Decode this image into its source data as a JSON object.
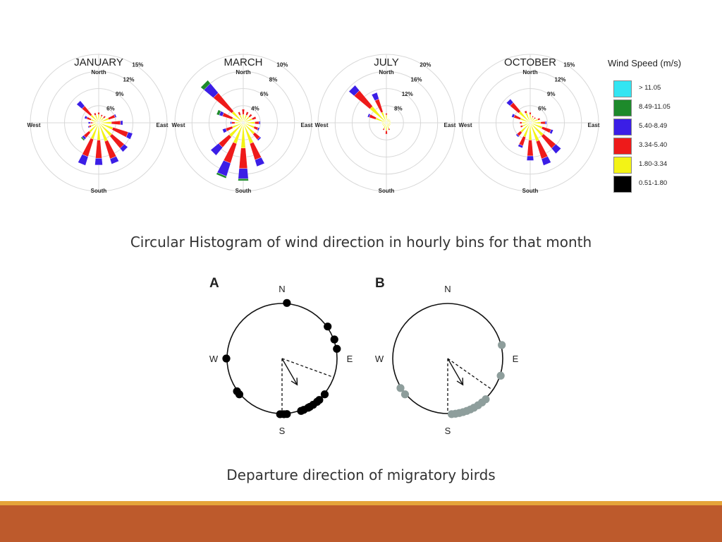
{
  "wind_roses": [
    {
      "title": "JANUARY",
      "north": "North",
      "south": "South",
      "east": "East",
      "west": "West",
      "rings": [
        "6%",
        "9%",
        "12%",
        "15%"
      ]
    },
    {
      "title": "MARCH",
      "north": "North",
      "south": "South",
      "east": "East",
      "west": "West",
      "rings": [
        "4%",
        "6%",
        "8%",
        "10%"
      ]
    },
    {
      "title": "JULY",
      "north": "North",
      "south": "South",
      "east": "East",
      "west": "West",
      "rings": [
        "8%",
        "12%",
        "16%",
        "20%"
      ]
    },
    {
      "title": "OCTOBER",
      "north": "North",
      "south": "South",
      "east": "East",
      "west": "West",
      "rings": [
        "6%",
        "9%",
        "12%",
        "15%"
      ]
    }
  ],
  "legend": {
    "title": "Wind Speed (m/s)",
    "items": [
      {
        "label": "> 11.05",
        "color": "#33e5f2"
      },
      {
        "label": "8.49-11.05",
        "color": "#1d8a2b"
      },
      {
        "label": "5.40-8.49",
        "color": "#3b1ee6"
      },
      {
        "label": "3.34-5.40",
        "color": "#ee1a1a"
      },
      {
        "label": "1.80-3.34",
        "color": "#f3f316"
      },
      {
        "label": "0.51-1.80",
        "color": "#000000"
      }
    ]
  },
  "captions": {
    "wind": "Circular Histogram of wind direction in hourly bins for that month",
    "birds": "Departure direction of migratory birds"
  },
  "departures": [
    {
      "panel": "A",
      "n": "N",
      "s": "S",
      "e": "E",
      "w": "W",
      "dot_color": "#000000",
      "mean_direction_deg": 150
    },
    {
      "panel": "B",
      "n": "N",
      "s": "S",
      "e": "E",
      "w": "W",
      "dot_color": "#8e9e9c",
      "mean_direction_deg": 150
    }
  ],
  "chart_data": [
    {
      "type": "rose",
      "title": "JANUARY",
      "directions_deg": [
        0,
        22.5,
        45,
        67.5,
        90,
        112.5,
        135,
        157.5,
        180,
        202.5,
        225,
        247.5,
        270,
        292.5,
        315,
        337.5
      ],
      "ring_values": [
        6,
        9,
        12,
        15
      ],
      "max_value": 15,
      "series": [
        {
          "name": "0.51-1.80",
          "values": [
            0.3,
            0.3,
            0.3,
            0.3,
            0.3,
            0.3,
            0.3,
            0.3,
            0.3,
            0.3,
            0.3,
            0.3,
            0.3,
            0.3,
            0.3,
            0.3
          ]
        },
        {
          "name": "1.80-3.34",
          "values": [
            1.5,
            1.2,
            1.2,
            2,
            2.5,
            3,
            3.5,
            4,
            3.5,
            3.5,
            2.5,
            1.5,
            1,
            1.5,
            2,
            1.5
          ]
        },
        {
          "name": "3.34-5.40",
          "values": [
            0.5,
            0.4,
            0.5,
            1.5,
            2,
            3.5,
            3.5,
            4,
            4,
            4,
            1.5,
            0.5,
            0.5,
            1,
            2.5,
            0.5
          ]
        },
        {
          "name": "5.40-8.49",
          "values": [
            0,
            0,
            0,
            0.3,
            0.5,
            1,
            1,
            1.2,
            1.5,
            2,
            0.5,
            0.2,
            0.5,
            0.5,
            1.5,
            0
          ]
        },
        {
          "name": "8.49-11.05",
          "values": [
            0,
            0,
            0,
            0,
            0,
            0,
            0,
            0,
            0,
            0,
            0.3,
            0,
            0,
            0,
            0,
            0
          ]
        },
        {
          "name": "> 11.05",
          "values": [
            0,
            0,
            0,
            0,
            0,
            0,
            0,
            0,
            0,
            0,
            0,
            0,
            0,
            0,
            0,
            0
          ]
        }
      ]
    },
    {
      "type": "rose",
      "title": "MARCH",
      "directions_deg": [
        0,
        22.5,
        45,
        67.5,
        90,
        112.5,
        135,
        157.5,
        180,
        202.5,
        225,
        247.5,
        270,
        292.5,
        315,
        337.5
      ],
      "ring_values": [
        4,
        6,
        8,
        10
      ],
      "max_value": 10,
      "series": [
        {
          "name": "0.51-1.80",
          "values": [
            0.2,
            0.2,
            0.2,
            0.2,
            0.2,
            0.2,
            0.2,
            0.2,
            0.2,
            0.2,
            0.2,
            0.2,
            0.2,
            0.2,
            0.2,
            0.2
          ]
        },
        {
          "name": "1.80-3.34",
          "values": [
            1,
            1,
            1,
            1.2,
            1.5,
            1.5,
            2,
            3,
            3.5,
            3,
            2.5,
            1.5,
            1,
            1.5,
            2,
            1
          ]
        },
        {
          "name": "3.34-5.40",
          "values": [
            0.8,
            0.5,
            0.5,
            0.6,
            0.6,
            0.6,
            1,
            2.5,
            3,
            3,
            2,
            1,
            0.5,
            1.5,
            3.5,
            0.5
          ]
        },
        {
          "name": "5.40-8.49",
          "values": [
            0,
            0,
            0,
            0,
            0.2,
            0.2,
            0.2,
            1,
            1.5,
            2,
            1.5,
            0.5,
            0.2,
            0.5,
            1.8,
            0
          ]
        },
        {
          "name": "8.49-11.05",
          "values": [
            0,
            0,
            0,
            0,
            0,
            0,
            0,
            0,
            0.3,
            0.3,
            0,
            0,
            0,
            0.4,
            0.6,
            0
          ]
        },
        {
          "name": "> 11.05",
          "values": [
            0,
            0,
            0,
            0,
            0,
            0,
            0,
            0,
            0,
            0,
            0,
            0,
            0,
            0,
            0,
            0
          ]
        }
      ]
    },
    {
      "type": "rose",
      "title": "JULY",
      "directions_deg": [
        0,
        22.5,
        45,
        67.5,
        90,
        112.5,
        135,
        157.5,
        180,
        202.5,
        225,
        247.5,
        270,
        292.5,
        315,
        337.5
      ],
      "ring_values": [
        8,
        12,
        16,
        20
      ],
      "max_value": 20,
      "series": [
        {
          "name": "0.51-1.80",
          "values": [
            0.3,
            0.3,
            0.3,
            0.3,
            0.3,
            0.3,
            0.3,
            0.3,
            0.3,
            0.3,
            0.3,
            0.3,
            0.3,
            0.3,
            0.3,
            0.3
          ]
        },
        {
          "name": "1.80-3.34",
          "values": [
            2,
            1,
            1,
            1,
            1,
            1,
            1,
            1.5,
            2,
            1.5,
            1,
            1,
            1,
            3,
            6,
            3
          ]
        },
        {
          "name": "3.34-5.40",
          "values": [
            0.5,
            0,
            0,
            0,
            0,
            0,
            0,
            0.5,
            1,
            0.5,
            0,
            0,
            0,
            2,
            6,
            4
          ]
        },
        {
          "name": "5.40-8.49",
          "values": [
            0,
            0,
            0,
            0,
            0,
            0,
            0,
            0,
            0,
            0,
            0,
            0,
            0,
            0.5,
            2,
            2
          ]
        },
        {
          "name": "8.49-11.05",
          "values": [
            0,
            0,
            0,
            0,
            0,
            0,
            0,
            0,
            0,
            0,
            0,
            0,
            0,
            0,
            0,
            0
          ]
        },
        {
          "name": "> 11.05",
          "values": [
            0,
            0,
            0,
            0,
            0,
            0,
            0,
            0,
            0,
            0,
            0,
            0,
            0,
            0,
            0,
            0
          ]
        }
      ]
    },
    {
      "type": "rose",
      "title": "OCTOBER",
      "directions_deg": [
        0,
        22.5,
        45,
        67.5,
        90,
        112.5,
        135,
        157.5,
        180,
        202.5,
        225,
        247.5,
        270,
        292.5,
        315,
        337.5
      ],
      "ring_values": [
        6,
        9,
        12,
        15
      ],
      "max_value": 15,
      "series": [
        {
          "name": "0.51-1.80",
          "values": [
            0.3,
            0.3,
            0.3,
            0.3,
            0.3,
            0.3,
            0.3,
            0.3,
            0.3,
            0.3,
            0.3,
            0.3,
            0.3,
            0.3,
            0.3,
            0.3
          ]
        },
        {
          "name": "1.80-3.34",
          "values": [
            1.5,
            1,
            1,
            1.5,
            2,
            2.5,
            3.5,
            4,
            3.5,
            3,
            2.5,
            1.5,
            1.5,
            2,
            3,
            2
          ]
        },
        {
          "name": "3.34-5.40",
          "values": [
            0.5,
            0.3,
            0.3,
            0.5,
            1,
            2,
            3.5,
            4,
            3.5,
            2,
            1,
            0.5,
            0.5,
            1.5,
            2.5,
            0.5
          ]
        },
        {
          "name": "5.40-8.49",
          "values": [
            0,
            0,
            0,
            0,
            0.3,
            0.5,
            1.5,
            1.5,
            1,
            0.5,
            0.3,
            0,
            0,
            0.5,
            1,
            0
          ]
        },
        {
          "name": "8.49-11.05",
          "values": [
            0,
            0,
            0,
            0,
            0,
            0,
            0,
            0,
            0,
            0,
            0,
            0,
            0,
            0,
            0,
            0
          ]
        },
        {
          "name": "> 11.05",
          "values": [
            0,
            0,
            0,
            0,
            0,
            0,
            0,
            0,
            0,
            0,
            0,
            0,
            0,
            0,
            0,
            0
          ]
        }
      ]
    },
    {
      "type": "scatter",
      "panel": "A",
      "kind": "circular",
      "directions_deg": [
        5,
        55,
        70,
        80,
        130,
        138,
        141,
        146,
        150,
        152,
        157,
        160,
        175,
        178,
        182,
        230,
        234,
        270
      ],
      "mean_vector_deg": 150,
      "sector_deg": [
        110,
        180
      ]
    },
    {
      "type": "scatter",
      "panel": "B",
      "kind": "circular",
      "directions_deg": [
        76,
        108,
        137,
        142,
        147,
        152,
        156,
        160,
        164,
        168,
        172,
        176,
        230,
        238
      ],
      "mean_vector_deg": 150,
      "sector_deg": [
        125,
        180
      ]
    }
  ]
}
